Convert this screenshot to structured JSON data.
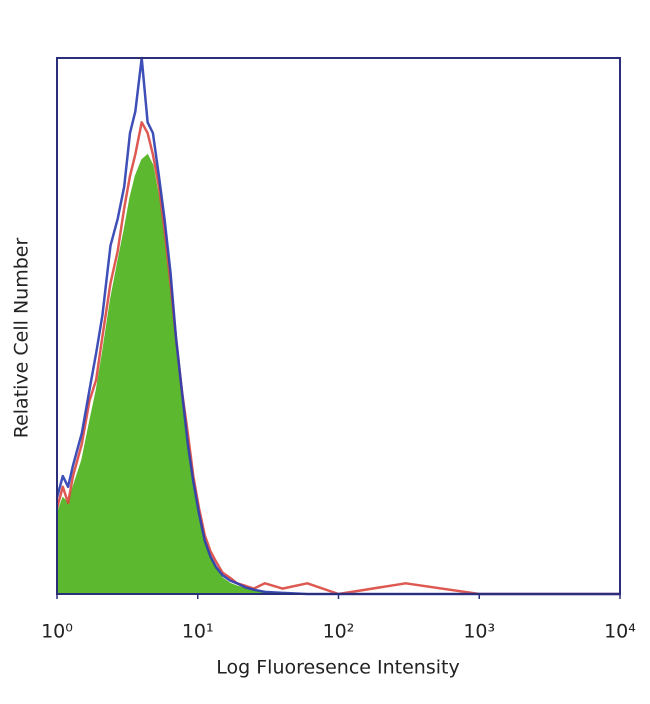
{
  "chart_data": {
    "type": "histogram",
    "x_label": "Log Fluoresence Intensity",
    "y_label": "Relative Cell Number",
    "x_log": true,
    "xlim": [
      1,
      10000
    ],
    "ylim": [
      0,
      100
    ],
    "xticks": [
      {
        "value": 1,
        "label": "10⁰"
      },
      {
        "value": 10,
        "label": "10¹"
      },
      {
        "value": 100,
        "label": "10²"
      },
      {
        "value": 1000,
        "label": "10³"
      },
      {
        "value": 10000,
        "label": "10⁴"
      }
    ],
    "frame_color": "#2b2f7a",
    "x": [
      1,
      1.1,
      1.2,
      1.3,
      1.5,
      1.7,
      1.9,
      2.1,
      2.4,
      2.7,
      3,
      3.3,
      3.6,
      4,
      4.4,
      4.8,
      5.3,
      5.8,
      6.4,
      7,
      7.7,
      8.5,
      9.3,
      10.2,
      11.2,
      12.3,
      13.5,
      15,
      17,
      19,
      22,
      25,
      30,
      40,
      60,
      100,
      300,
      1000,
      10000
    ],
    "series": [
      {
        "style": "area",
        "color": "#5cb82e",
        "values": [
          15,
          18,
          17,
          20,
          25,
          32,
          38,
          45,
          55,
          62,
          68,
          74,
          78,
          81,
          82,
          80,
          74,
          66,
          56,
          46,
          36,
          27,
          20,
          14,
          10,
          7,
          5,
          3,
          2,
          1.5,
          1,
          0.7,
          0.4,
          0.2,
          0,
          0,
          0,
          0,
          0
        ]
      },
      {
        "style": "line",
        "color": "#d9473f",
        "values": [
          16,
          20,
          17,
          22,
          28,
          36,
          40,
          48,
          58,
          64,
          72,
          78,
          82,
          88,
          86,
          82,
          76,
          68,
          58,
          48,
          38,
          30,
          22,
          16,
          11,
          8,
          6,
          4,
          3,
          2,
          1.5,
          1,
          2,
          1,
          2,
          0,
          2,
          0,
          0
        ]
      },
      {
        "style": "line",
        "color": "#2a3cb0",
        "values": [
          18,
          22,
          20,
          24,
          30,
          38,
          45,
          52,
          65,
          70,
          76,
          86,
          90,
          100,
          88,
          86,
          78,
          70,
          60,
          48,
          38,
          28,
          21,
          15,
          10,
          7,
          5,
          3.5,
          2.5,
          2,
          1.2,
          0.8,
          0.4,
          0.2,
          0,
          0,
          0,
          0,
          0
        ]
      }
    ]
  }
}
